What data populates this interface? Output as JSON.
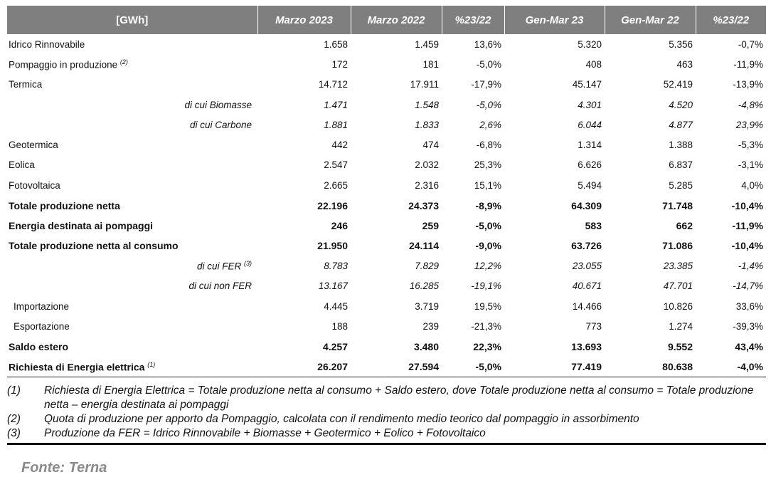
{
  "table": {
    "headers": [
      "[GWh]",
      "Marzo 2023",
      "Marzo 2022",
      "%23/22",
      "Gen-Mar 23",
      "Gen-Mar 22",
      "%23/22"
    ],
    "rows": [
      {
        "label": "Idrico Rinnovabile",
        "sup": "",
        "type": "normal",
        "values": [
          "1.658",
          "1.459",
          "13,6%",
          "5.320",
          "5.356",
          "-0,7%"
        ]
      },
      {
        "label": "Pompaggio in produzione",
        "sup": "(2)",
        "type": "normal",
        "values": [
          "172",
          "181",
          "-5,0%",
          "408",
          "463",
          "-11,9%"
        ]
      },
      {
        "label": "Termica",
        "sup": "",
        "type": "normal",
        "values": [
          "14.712",
          "17.911",
          "-17,9%",
          "45.147",
          "52.419",
          "-13,9%"
        ]
      },
      {
        "label": "di cui Biomasse",
        "sup": "",
        "type": "sub",
        "values": [
          "1.471",
          "1.548",
          "-5,0%",
          "4.301",
          "4.520",
          "-4,8%"
        ]
      },
      {
        "label": "di cui Carbone",
        "sup": "",
        "type": "sub",
        "values": [
          "1.881",
          "1.833",
          "2,6%",
          "6.044",
          "4.877",
          "23,9%"
        ]
      },
      {
        "label": "Geotermica",
        "sup": "",
        "type": "normal",
        "values": [
          "442",
          "474",
          "-6,8%",
          "1.314",
          "1.388",
          "-5,3%"
        ]
      },
      {
        "label": "Eolica",
        "sup": "",
        "type": "normal",
        "values": [
          "2.547",
          "2.032",
          "25,3%",
          "6.626",
          "6.837",
          "-3,1%"
        ]
      },
      {
        "label": "Fotovoltaica",
        "sup": "",
        "type": "normal",
        "values": [
          "2.665",
          "2.316",
          "15,1%",
          "5.494",
          "5.285",
          "4,0%"
        ]
      },
      {
        "label": "Totale produzione netta",
        "sup": "",
        "type": "bold",
        "values": [
          "22.196",
          "24.373",
          "-8,9%",
          "64.309",
          "71.748",
          "-10,4%"
        ]
      },
      {
        "label": "Energia destinata ai pompaggi",
        "sup": "",
        "type": "bold",
        "values": [
          "246",
          "259",
          "-5,0%",
          "583",
          "662",
          "-11,9%"
        ]
      },
      {
        "label": "Totale produzione netta al consumo",
        "sup": "",
        "type": "bold",
        "values": [
          "21.950",
          "24.114",
          "-9,0%",
          "63.726",
          "71.086",
          "-10,4%"
        ]
      },
      {
        "label": "di cui FER",
        "sup": "(3)",
        "type": "sub",
        "values": [
          "8.783",
          "7.829",
          "12,2%",
          "23.055",
          "23.385",
          "-1,4%"
        ]
      },
      {
        "label": "di cui non FER",
        "sup": "",
        "type": "sub",
        "values": [
          "13.167",
          "16.285",
          "-19,1%",
          "40.671",
          "47.701",
          "-14,7%"
        ]
      },
      {
        "label": "Importazione",
        "sup": "",
        "type": "ind",
        "values": [
          "4.445",
          "3.719",
          "19,5%",
          "14.466",
          "10.826",
          "33,6%"
        ]
      },
      {
        "label": "Esportazione",
        "sup": "",
        "type": "ind",
        "values": [
          "188",
          "239",
          "-21,3%",
          "773",
          "1.274",
          "-39,3%"
        ]
      },
      {
        "label": "Saldo estero",
        "sup": "",
        "type": "bold",
        "values": [
          "4.257",
          "3.480",
          "22,3%",
          "13.693",
          "9.552",
          "43,4%"
        ]
      },
      {
        "label": "Richiesta di Energia elettrica",
        "sup": "(1)",
        "type": "bold last",
        "values": [
          "26.207",
          "27.594",
          "-5,0%",
          "77.419",
          "80.638",
          "-4,0%"
        ]
      }
    ]
  },
  "notes": [
    {
      "num": "(1)",
      "text": "Richiesta di Energia Elettrica = Totale produzione netta al consumo + Saldo estero, dove Totale produzione netta al consumo = Totale produzione netta – energia destinata ai pompaggi"
    },
    {
      "num": "(2)",
      "text": "Quota di produzione per apporto da Pompaggio, calcolata con il rendimento medio teorico dal pompaggio in assorbimento"
    },
    {
      "num": "(3)",
      "text": "Produzione da FER = Idrico Rinnovabile + Biomasse + Geotermico + Eolico + Fotovoltaico"
    }
  ],
  "source": "Fonte: Terna"
}
